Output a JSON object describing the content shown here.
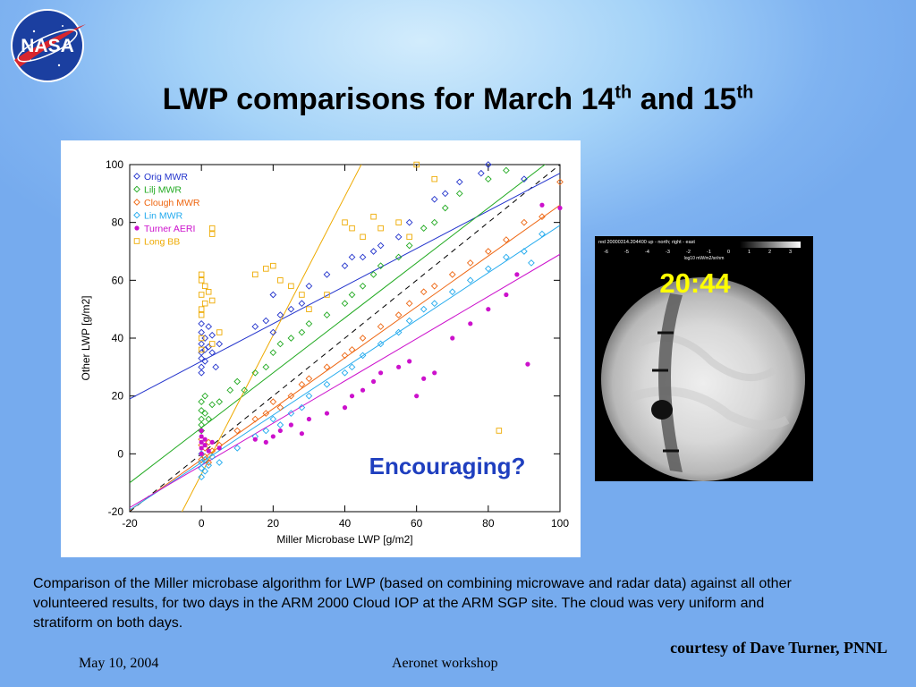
{
  "slide": {
    "title_main": "LWP comparisons for March 14",
    "title_sup1": "th",
    "title_and": " and 15",
    "title_sup2": "th",
    "logo_text": "NASA",
    "caption": "Comparison of the Miller microbase algorithm for LWP (based on combining microwave and radar data) against all other volunteered results, for two days in the ARM 2000 Cloud IOP at the ARM SGP site.  The cloud was very uniform and stratiform on both days.",
    "credit": "courtesy of Dave Turner, PNNL",
    "footer_date": "May 10, 2004",
    "footer_event": "Aeronet workshop"
  },
  "sky_image": {
    "time_label": "20:44",
    "header_text": "red      20000314.204400      up - north; right - east",
    "scale_ticks": [
      "-6",
      "-5",
      "-4",
      "-3",
      "-2",
      "-1",
      "0",
      "1",
      "2",
      "3"
    ],
    "scale_label": "log10 mW/m2/sr/nm",
    "time_color": "#ffff00"
  },
  "chart_data": {
    "type": "scatter",
    "xlabel": "Miller Microbase LWP [g/m2]",
    "ylabel": "Other LWP [g/m2]",
    "xlim": [
      -20,
      100
    ],
    "ylim": [
      -20,
      100
    ],
    "xticks": [
      -20,
      0,
      20,
      40,
      60,
      80,
      100
    ],
    "yticks": [
      -20,
      0,
      20,
      40,
      60,
      80,
      100
    ],
    "legend_position": "top-left",
    "annotation": "Encouraging?",
    "annotation_color": "#1f3fbf",
    "one_to_one_line": true,
    "series": [
      {
        "name": "Orig MWR",
        "color": "#2233cc",
        "marker": "diamond",
        "fit": [
          32,
          0.65
        ],
        "points": [
          [
            0,
            33
          ],
          [
            0,
            35
          ],
          [
            0,
            38
          ],
          [
            0,
            30
          ],
          [
            0,
            42
          ],
          [
            0,
            45
          ],
          [
            0,
            28
          ],
          [
            1,
            40
          ],
          [
            1,
            36
          ],
          [
            1,
            32
          ],
          [
            2,
            44
          ],
          [
            2,
            37
          ],
          [
            3,
            35
          ],
          [
            3,
            41
          ],
          [
            4,
            30
          ],
          [
            5,
            38
          ],
          [
            15,
            44
          ],
          [
            18,
            46
          ],
          [
            20,
            42
          ],
          [
            20,
            55
          ],
          [
            22,
            48
          ],
          [
            25,
            50
          ],
          [
            28,
            52
          ],
          [
            30,
            58
          ],
          [
            35,
            62
          ],
          [
            40,
            65
          ],
          [
            42,
            68
          ],
          [
            45,
            68
          ],
          [
            48,
            70
          ],
          [
            50,
            72
          ],
          [
            55,
            75
          ],
          [
            58,
            80
          ],
          [
            65,
            88
          ],
          [
            68,
            90
          ],
          [
            72,
            94
          ],
          [
            78,
            97
          ],
          [
            80,
            100
          ],
          [
            90,
            95
          ]
        ]
      },
      {
        "name": "Lilj MWR",
        "color": "#22aa22",
        "marker": "diamond",
        "fit": [
          9,
          0.95
        ],
        "points": [
          [
            0,
            10
          ],
          [
            0,
            12
          ],
          [
            0,
            8
          ],
          [
            0,
            15
          ],
          [
            0,
            18
          ],
          [
            1,
            14
          ],
          [
            1,
            20
          ],
          [
            2,
            12
          ],
          [
            3,
            17
          ],
          [
            5,
            18
          ],
          [
            8,
            22
          ],
          [
            10,
            25
          ],
          [
            12,
            22
          ],
          [
            15,
            28
          ],
          [
            18,
            30
          ],
          [
            20,
            35
          ],
          [
            22,
            38
          ],
          [
            25,
            40
          ],
          [
            28,
            42
          ],
          [
            30,
            45
          ],
          [
            35,
            48
          ],
          [
            40,
            52
          ],
          [
            42,
            55
          ],
          [
            45,
            58
          ],
          [
            48,
            62
          ],
          [
            50,
            65
          ],
          [
            55,
            68
          ],
          [
            58,
            72
          ],
          [
            62,
            78
          ],
          [
            65,
            80
          ],
          [
            68,
            85
          ],
          [
            72,
            90
          ],
          [
            80,
            95
          ],
          [
            85,
            98
          ]
        ]
      },
      {
        "name": "Clough MWR",
        "color": "#ee6611",
        "marker": "diamond",
        "fit": [
          -2,
          0.88
        ],
        "points": [
          [
            0,
            0
          ],
          [
            0,
            -2
          ],
          [
            0,
            3
          ],
          [
            0,
            5
          ],
          [
            1,
            -1
          ],
          [
            1,
            2
          ],
          [
            2,
            4
          ],
          [
            2,
            -3
          ],
          [
            3,
            1
          ],
          [
            5,
            3
          ],
          [
            10,
            8
          ],
          [
            15,
            12
          ],
          [
            18,
            14
          ],
          [
            20,
            18
          ],
          [
            22,
            16
          ],
          [
            25,
            20
          ],
          [
            28,
            24
          ],
          [
            30,
            26
          ],
          [
            35,
            30
          ],
          [
            40,
            34
          ],
          [
            42,
            36
          ],
          [
            45,
            40
          ],
          [
            50,
            44
          ],
          [
            55,
            48
          ],
          [
            58,
            52
          ],
          [
            62,
            56
          ],
          [
            65,
            58
          ],
          [
            70,
            62
          ],
          [
            75,
            66
          ],
          [
            80,
            70
          ],
          [
            85,
            74
          ],
          [
            90,
            80
          ],
          [
            95,
            82
          ],
          [
            100,
            94
          ]
        ]
      },
      {
        "name": "Lin MWR",
        "color": "#22aaee",
        "marker": "diamond",
        "fit": [
          -3,
          0.82
        ],
        "points": [
          [
            0,
            -5
          ],
          [
            0,
            -3
          ],
          [
            0,
            0
          ],
          [
            0,
            -8
          ],
          [
            1,
            -6
          ],
          [
            1,
            -2
          ],
          [
            2,
            -4
          ],
          [
            3,
            -1
          ],
          [
            5,
            -3
          ],
          [
            10,
            2
          ],
          [
            15,
            6
          ],
          [
            18,
            8
          ],
          [
            20,
            12
          ],
          [
            22,
            10
          ],
          [
            25,
            14
          ],
          [
            28,
            16
          ],
          [
            30,
            20
          ],
          [
            35,
            24
          ],
          [
            40,
            28
          ],
          [
            42,
            30
          ],
          [
            45,
            34
          ],
          [
            50,
            38
          ],
          [
            55,
            42
          ],
          [
            58,
            46
          ],
          [
            62,
            50
          ],
          [
            65,
            52
          ],
          [
            70,
            56
          ],
          [
            75,
            60
          ],
          [
            80,
            64
          ],
          [
            85,
            68
          ],
          [
            90,
            70
          ],
          [
            92,
            66
          ],
          [
            95,
            76
          ]
        ]
      },
      {
        "name": "Turner AERI",
        "color": "#cc11cc",
        "marker": "dot",
        "fit": [
          -4,
          0.73
        ],
        "points": [
          [
            0,
            2
          ],
          [
            0,
            4
          ],
          [
            0,
            6
          ],
          [
            0,
            0
          ],
          [
            0,
            8
          ],
          [
            1,
            3
          ],
          [
            1,
            5
          ],
          [
            2,
            1
          ],
          [
            3,
            4
          ],
          [
            5,
            2
          ],
          [
            15,
            5
          ],
          [
            18,
            4
          ],
          [
            20,
            6
          ],
          [
            22,
            8
          ],
          [
            25,
            10
          ],
          [
            28,
            7
          ],
          [
            30,
            12
          ],
          [
            35,
            14
          ],
          [
            40,
            16
          ],
          [
            42,
            20
          ],
          [
            45,
            22
          ],
          [
            48,
            25
          ],
          [
            50,
            28
          ],
          [
            55,
            30
          ],
          [
            58,
            32
          ],
          [
            60,
            20
          ],
          [
            62,
            26
          ],
          [
            65,
            28
          ],
          [
            70,
            40
          ],
          [
            75,
            45
          ],
          [
            80,
            50
          ],
          [
            85,
            55
          ],
          [
            88,
            62
          ],
          [
            91,
            31
          ],
          [
            95,
            86
          ],
          [
            100,
            85
          ]
        ]
      },
      {
        "name": "Long BB",
        "color": "#eeaa00",
        "marker": "square",
        "fit": [
          -7,
          2.4
        ],
        "points": [
          [
            0,
            60
          ],
          [
            0,
            62
          ],
          [
            0,
            55
          ],
          [
            0,
            50
          ],
          [
            0,
            48
          ],
          [
            0,
            40
          ],
          [
            0,
            36
          ],
          [
            1,
            58
          ],
          [
            1,
            52
          ],
          [
            2,
            56
          ],
          [
            3,
            53
          ],
          [
            3,
            38
          ],
          [
            5,
            42
          ],
          [
            15,
            62
          ],
          [
            18,
            64
          ],
          [
            20,
            65
          ],
          [
            22,
            60
          ],
          [
            25,
            58
          ],
          [
            28,
            55
          ],
          [
            30,
            50
          ],
          [
            35,
            55
          ],
          [
            40,
            80
          ],
          [
            42,
            78
          ],
          [
            45,
            75
          ],
          [
            48,
            82
          ],
          [
            50,
            78
          ],
          [
            55,
            80
          ],
          [
            58,
            75
          ],
          [
            60,
            100
          ],
          [
            65,
            95
          ],
          [
            83,
            8
          ],
          [
            3,
            76
          ],
          [
            3,
            78
          ]
        ]
      }
    ]
  }
}
